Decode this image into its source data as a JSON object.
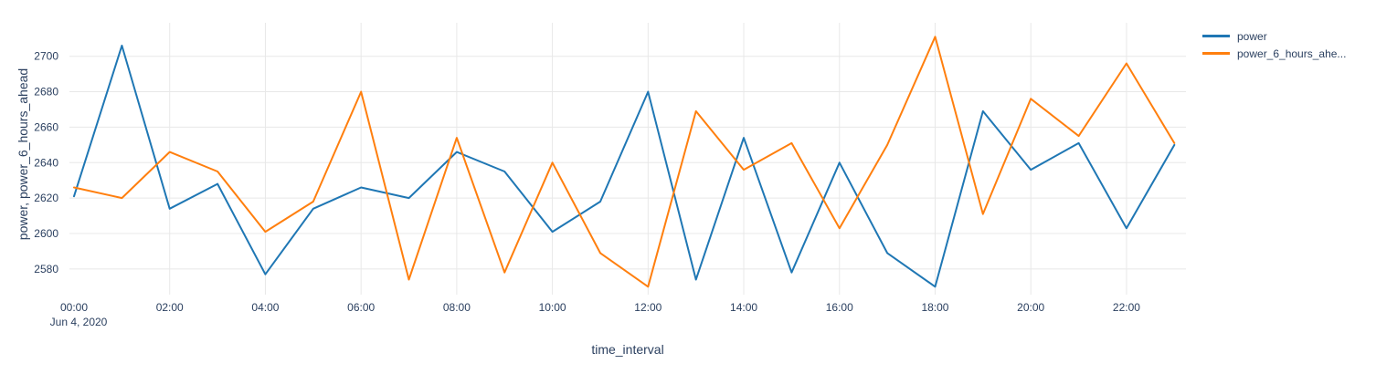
{
  "legend": {
    "position": "top-right-outside",
    "items": [
      {
        "label": "power",
        "color": "#1f77b4"
      },
      {
        "label": "power_6_hours_ahe...",
        "color": "#ff7f0e"
      }
    ]
  },
  "chart_data": {
    "type": "line",
    "title": "",
    "xlabel": "time_interval",
    "ylabel": "power, power_6_hours_ahead",
    "x_date_label": "Jun 4, 2020",
    "x": [
      "00:00",
      "01:00",
      "02:00",
      "03:00",
      "04:00",
      "05:00",
      "06:00",
      "07:00",
      "08:00",
      "09:00",
      "10:00",
      "11:00",
      "12:00",
      "13:00",
      "14:00",
      "15:00",
      "16:00",
      "17:00",
      "18:00",
      "19:00",
      "20:00",
      "21:00",
      "22:00",
      "23:00"
    ],
    "x_tick_labels": [
      "00:00",
      "02:00",
      "04:00",
      "06:00",
      "08:00",
      "10:00",
      "12:00",
      "14:00",
      "16:00",
      "18:00",
      "20:00",
      "22:00"
    ],
    "y_ticks": [
      2580,
      2600,
      2620,
      2640,
      2660,
      2680,
      2700
    ],
    "ylim": [
      2565,
      2719
    ],
    "grid": true,
    "colors": {
      "power": "#1f77b4",
      "power_6_hours_ahead": "#ff7f0e",
      "text": "#2a3f5f",
      "grid": "#e8e8e8"
    },
    "series": [
      {
        "name": "power",
        "values": [
          2621,
          2706,
          2614,
          2628,
          2577,
          2614,
          2626,
          2620,
          2646,
          2635,
          2601,
          2618,
          2680,
          2574,
          2654,
          2578,
          2640,
          2589,
          2570,
          2669,
          2636,
          2651,
          2603,
          2650
        ]
      },
      {
        "name": "power_6_hours_ahead",
        "values": [
          2626,
          2620,
          2646,
          2635,
          2601,
          2618,
          2680,
          2574,
          2654,
          2578,
          2640,
          2589,
          2570,
          2669,
          2636,
          2651,
          2603,
          2650,
          2711,
          2611,
          2676,
          2655,
          2696,
          2651
        ]
      }
    ]
  }
}
